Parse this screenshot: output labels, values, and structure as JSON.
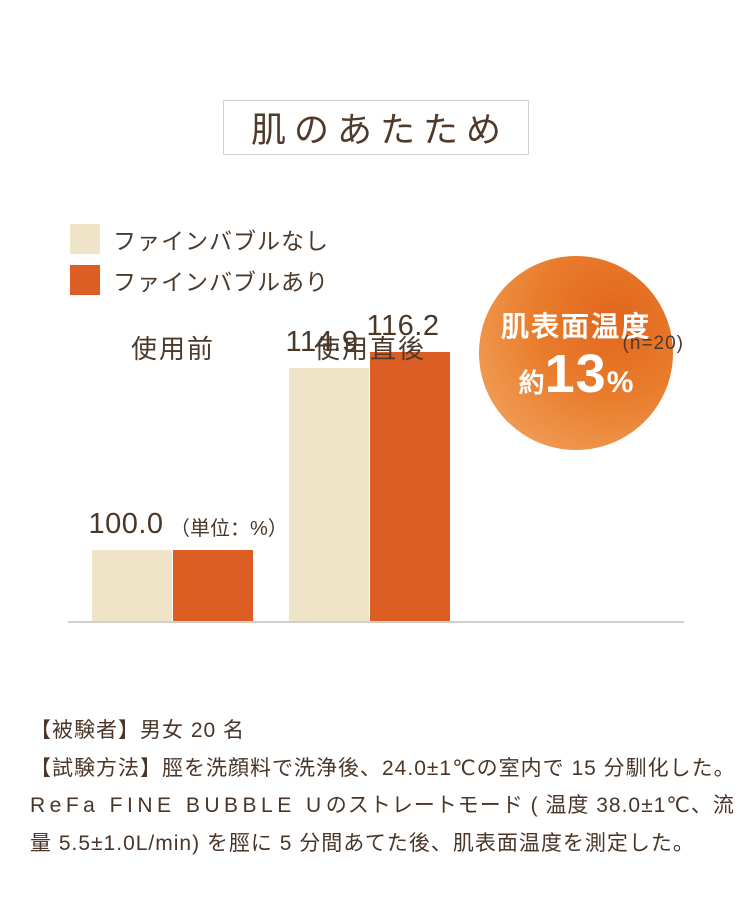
{
  "title": "肌のあたため",
  "colors": {
    "background": "#ffffff",
    "text": "#4a3527",
    "beige": "#efe3c8",
    "orange": "#dc5e24",
    "baseline": "#d2cfc9",
    "badge_gradient_dark": "#e1661d",
    "badge_gradient_light": "#f3ab66"
  },
  "legend": {
    "items": [
      {
        "label": "ファインバブルなし",
        "color": "#efe3c8"
      },
      {
        "label": "ファインバブルあり",
        "color": "#dc5e24"
      }
    ]
  },
  "badge": {
    "line1": "肌表面温度",
    "prefix": "約",
    "value": "13",
    "unit": "%"
  },
  "chart_data": {
    "type": "bar",
    "title": "肌のあたため",
    "categories": [
      "使用前",
      "使用直後"
    ],
    "series": [
      {
        "name": "ファインバブルなし",
        "values": [
          100.0,
          114.9
        ],
        "color": "#efe3c8"
      },
      {
        "name": "ファインバブルあり",
        "values": [
          100.0,
          116.2
        ],
        "color": "#dc5e24"
      }
    ],
    "value_labels": {
      "before": "100.0",
      "after_none": "114.9",
      "after_with": "116.2"
    },
    "unit_note": "（単位：%）",
    "sample_note": "(n=20)",
    "ylim": [
      94.2,
      120
    ],
    "grid": false,
    "legend_position": "top-left",
    "annotation": "肌表面温度 約13%"
  },
  "footer": {
    "lines": [
      "【被験者】男女 20 名",
      "【試験方法】脛を洗顔料で洗浄後、24.0±1℃の室内で 15 分馴化した。",
      "ReFa FINE BUBBLE U",
      "のストレートモード ( 温度 38.0±1℃、流",
      "量 5.5±1.0L/min) を脛に 5 分間あてた後、肌表面温度を測定した。"
    ]
  }
}
